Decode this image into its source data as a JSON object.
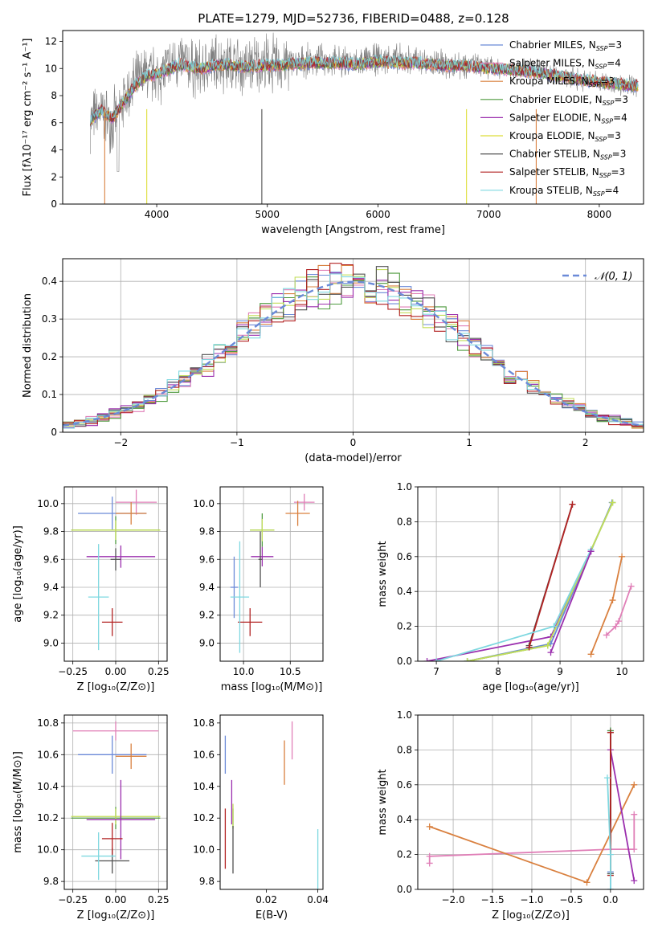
{
  "figure_title": "PLATE=1279, MJD=52736, FIBERID=0488, z=0.128",
  "chart_data": [
    {
      "id": "spectrum",
      "type": "line",
      "title": "PLATE=1279, MJD=52736, FIBERID=0488, z=0.128",
      "xlabel": "wavelength [Angstrom, rest frame]",
      "ylabel": "Flux [fλ10⁻¹⁷ erg cm⁻² s⁻¹ A⁻¹]",
      "xlim": [
        3150,
        8400
      ],
      "ylim": [
        0,
        12.8
      ],
      "xticks": [
        4000,
        5000,
        6000,
        7000,
        8000
      ],
      "yticks": [
        0,
        2,
        4,
        6,
        8,
        10,
        12
      ],
      "grid": false,
      "legend_position": "upper right",
      "data_series": {
        "name": "",
        "color": "#808080",
        "x": [
          3400,
          3500,
          3600,
          3700,
          3800,
          3900,
          4000,
          4100,
          4200,
          4300,
          4400,
          4500,
          4600,
          4700,
          4800,
          4900,
          5000,
          5200,
          5400,
          5600,
          5800,
          6000,
          6200,
          6400,
          6600,
          6800,
          7000,
          7200,
          7400,
          7600,
          7800,
          8000,
          8200,
          8350
        ],
        "y": [
          6.2,
          6.8,
          6.0,
          7.6,
          8.8,
          9.6,
          9.4,
          10.0,
          10.6,
          10.2,
          9.8,
          10.4,
          10.5,
          10.3,
          10.1,
          10.4,
          10.3,
          10.4,
          10.6,
          10.5,
          10.4,
          10.7,
          10.6,
          10.5,
          10.3,
          10.4,
          10.1,
          10.0,
          9.9,
          9.6,
          9.2,
          9.0,
          8.8,
          8.7
        ]
      },
      "series": [
        {
          "name": "Chabrier MILES, N_SSP=3",
          "label": "Chabrier MILES, N",
          "sub": "SSP",
          "tail": "=3",
          "color": "#6b8ad8"
        },
        {
          "name": "Salpeter MILES, N_SSP=4",
          "label": "Salpeter MILES, N",
          "sub": "SSP",
          "tail": "=4",
          "color": "#e07fb7"
        },
        {
          "name": "Kroupa MILES, N_SSP=3",
          "label": "Kroupa MILES, N",
          "sub": "SSP",
          "tail": "=3",
          "color": "#d9803f"
        },
        {
          "name": "Chabrier ELODIE, N_SSP=3",
          "label": "Chabrier ELODIE, N",
          "sub": "SSP",
          "tail": "=3",
          "color": "#4e9a3e"
        },
        {
          "name": "Salpeter ELODIE, N_SSP=4",
          "label": "Salpeter ELODIE, N",
          "sub": "SSP",
          "tail": "=4",
          "color": "#9b2fae"
        },
        {
          "name": "Kroupa ELODIE, N_SSP=3",
          "label": "Kroupa ELODIE, N",
          "sub": "SSP",
          "tail": "=3",
          "color": "#dede3a"
        },
        {
          "name": "Chabrier STELIB, N_SSP=3",
          "label": "Chabrier STELIB, N",
          "sub": "SSP",
          "tail": "=3",
          "color": "#505050"
        },
        {
          "name": "Salpeter STELIB, N_SSP=3",
          "label": "Salpeter STELIB, N",
          "sub": "SSP",
          "tail": "=3",
          "color": "#b22222"
        },
        {
          "name": "Kroupa STELIB, N_SSP=4",
          "label": "Kroupa STELIB, N",
          "sub": "SSP",
          "tail": "=4",
          "color": "#7fd8e0"
        }
      ],
      "model_series": {
        "x": [
          3400,
          3500,
          3600,
          3700,
          3800,
          3900,
          4000,
          4100,
          4200,
          4300,
          4400,
          4500,
          4600,
          4700,
          4800,
          4900,
          5000,
          5200,
          5400,
          5600,
          5800,
          6000,
          6200,
          6400,
          6600,
          6800,
          7000,
          7200,
          7400,
          7600,
          7800,
          8000,
          8200,
          8350
        ],
        "y": [
          6.2,
          6.9,
          6.3,
          7.5,
          8.7,
          9.4,
          9.6,
          9.9,
          10.3,
          10.1,
          10.0,
          10.2,
          10.3,
          10.2,
          10.1,
          10.2,
          10.2,
          10.3,
          10.4,
          10.4,
          10.3,
          10.5,
          10.4,
          10.4,
          10.2,
          10.2,
          10.0,
          9.9,
          9.7,
          9.5,
          9.2,
          9.0,
          8.8,
          8.7
        ]
      },
      "dropouts": [
        {
          "series": "Kroupa MILES, N_SSP=3",
          "x": 3530
        },
        {
          "series": "Kroupa ELODIE, N_SSP=3",
          "x": 3910
        },
        {
          "series": "Chabrier STELIB, N_SSP=3",
          "x": 4950
        },
        {
          "series": "Kroupa ELODIE, N_SSP=3",
          "x": 6800
        },
        {
          "series": "Kroupa MILES, N_SSP=3",
          "x": 7430
        }
      ]
    },
    {
      "id": "residuals",
      "type": "histogram",
      "xlabel": "(data-model)/error",
      "ylabel": "Normed distribution",
      "xlim": [
        -2.5,
        2.5
      ],
      "ylim": [
        0,
        0.46
      ],
      "xticks": [
        -2,
        -1,
        0,
        1,
        2
      ],
      "yticks": [
        0.0,
        0.1,
        0.2,
        0.3,
        0.4
      ],
      "grid": true,
      "legend_position": "upper right",
      "legend_entry": "𝒩(0, 1)",
      "bin_width": 0.1,
      "reference_curve": {
        "name": "N(0,1)",
        "type": "normal",
        "mean": 0,
        "sigma": 1,
        "color": "#6b8ad8",
        "dashed": true
      },
      "series": [
        {
          "name": "Chabrier MILES",
          "color": "#6b8ad8"
        },
        {
          "name": "Salpeter MILES",
          "color": "#e07fb7"
        },
        {
          "name": "Kroupa MILES",
          "color": "#d9803f"
        },
        {
          "name": "Chabrier ELODIE",
          "color": "#4e9a3e"
        },
        {
          "name": "Salpeter ELODIE",
          "color": "#9b2fae"
        },
        {
          "name": "Kroupa ELODIE",
          "color": "#c2dd5a"
        },
        {
          "name": "Chabrier STELIB",
          "color": "#505050"
        },
        {
          "name": "Salpeter STELIB",
          "color": "#b22222"
        },
        {
          "name": "Kroupa STELIB",
          "color": "#7fd8e0"
        }
      ]
    },
    {
      "id": "age_vs_Z",
      "type": "errorbar",
      "xlabel": "Z [log₁₀(Z/Z⊙)]",
      "ylabel": "age  [log₁₀(age/yr)]",
      "xlim": [
        -0.3,
        0.3
      ],
      "ylim": [
        8.87,
        10.12
      ],
      "xticks": [
        -0.25,
        0.0,
        0.25
      ],
      "xticklabels": [
        "−0.25",
        "0.00",
        "0.25"
      ],
      "yticks": [
        9.0,
        9.2,
        9.4,
        9.6,
        9.8,
        10.0
      ],
      "yticklabels": [
        "9.0",
        "9.2",
        "9.4",
        "9.6",
        "9.8",
        "10.0"
      ],
      "grid": true,
      "points": [
        {
          "color": "#6b8ad8",
          "x": -0.02,
          "xerr": 0.2,
          "y": 9.93,
          "yerr": 0.12
        },
        {
          "color": "#e07fb7",
          "x": 0.12,
          "xerr": 0.12,
          "y": 10.01,
          "yerr": 0.09
        },
        {
          "color": "#d9803f",
          "x": 0.09,
          "xerr": 0.09,
          "y": 9.93,
          "yerr": 0.08
        },
        {
          "color": "#4e9a3e",
          "x": 0.0,
          "xerr": 0.26,
          "y": 9.81,
          "yerr": 0.1
        },
        {
          "color": "#c2dd5a",
          "x": 0.0,
          "xerr": 0.26,
          "y": 9.81,
          "yerr": 0.07
        },
        {
          "color": "#9b2fae",
          "x": 0.03,
          "xerr": 0.2,
          "y": 9.62,
          "yerr": 0.08
        },
        {
          "color": "#505050",
          "x": 0.0,
          "xerr": 0.03,
          "y": 9.6,
          "yerr": 0.08
        },
        {
          "color": "#b22222",
          "x": -0.02,
          "xerr": 0.06,
          "y": 9.15,
          "yerr": 0.1
        },
        {
          "color": "#7fd8e0",
          "x": -0.1,
          "xerr": 0.06,
          "y": 9.33,
          "yerr": 0.38
        }
      ]
    },
    {
      "id": "age_vs_mass",
      "type": "errorbar",
      "xlabel": "mass [log₁₀(M/M⊙)]",
      "ylabel": "",
      "xlim": [
        9.75,
        10.85
      ],
      "ylim": [
        8.87,
        10.12
      ],
      "xticks": [
        10.0,
        10.5
      ],
      "xticklabels": [
        "10.0",
        "10.5"
      ],
      "yticks": [
        9.0,
        9.2,
        9.4,
        9.6,
        9.8,
        10.0
      ],
      "yticklabels": [
        "9.0",
        "9.2",
        "9.4",
        "9.6",
        "9.8",
        "10.0"
      ],
      "grid": true,
      "points": [
        {
          "color": "#6b8ad8",
          "x": 9.9,
          "xerr": 0.04,
          "y": 9.4,
          "yerr": 0.22
        },
        {
          "color": "#e07fb7",
          "x": 10.65,
          "xerr": 0.11,
          "y": 10.01,
          "yerr": 0.06
        },
        {
          "color": "#d9803f",
          "x": 10.58,
          "xerr": 0.13,
          "y": 9.93,
          "yerr": 0.09
        },
        {
          "color": "#4e9a3e",
          "x": 10.2,
          "xerr": 0.13,
          "y": 9.81,
          "yerr": 0.12
        },
        {
          "color": "#c2dd5a",
          "x": 10.2,
          "xerr": 0.13,
          "y": 9.81,
          "yerr": 0.08
        },
        {
          "color": "#9b2fae",
          "x": 10.2,
          "xerr": 0.12,
          "y": 9.62,
          "yerr": 0.07
        },
        {
          "color": "#505050",
          "x": 10.18,
          "xerr": 0.02,
          "y": 9.6,
          "yerr": 0.2
        },
        {
          "color": "#b22222",
          "x": 10.07,
          "xerr": 0.13,
          "y": 9.15,
          "yerr": 0.1
        },
        {
          "color": "#7fd8e0",
          "x": 9.96,
          "xerr": 0.1,
          "y": 9.33,
          "yerr": 0.4
        }
      ]
    },
    {
      "id": "weight_vs_age",
      "type": "line",
      "xlabel": "age  [log₁₀(age/yr)]",
      "ylabel": "mass weight",
      "xlim": [
        6.7,
        10.35
      ],
      "ylim": [
        0,
        1.0
      ],
      "xticks": [
        7,
        8,
        9,
        10
      ],
      "xticklabels": [
        "7",
        "8",
        "9",
        "10"
      ],
      "yticks": [
        0.0,
        0.2,
        0.4,
        0.6,
        0.8,
        1.0
      ],
      "yticklabels": [
        "0.0",
        "0.2",
        "0.4",
        "0.6",
        "0.8",
        "1.0"
      ],
      "grid": true,
      "series": [
        {
          "color": "#6b8ad8",
          "x": [
            7.5,
            8.85,
            9.84
          ],
          "y": [
            0.0,
            0.1,
            0.91
          ]
        },
        {
          "color": "#e07fb7",
          "x": [
            9.75,
            9.9,
            9.95,
            10.15
          ],
          "y": [
            0.15,
            0.2,
            0.23,
            0.43
          ]
        },
        {
          "color": "#d9803f",
          "x": [
            9.5,
            9.85,
            10.0
          ],
          "y": [
            0.04,
            0.35,
            0.6
          ]
        },
        {
          "color": "#4e9a3e",
          "x": [
            7.5,
            8.8,
            9.85
          ],
          "y": [
            0.0,
            0.09,
            0.91
          ]
        },
        {
          "color": "#9b2fae",
          "x": [
            6.85,
            8.85,
            9.5
          ],
          "y": [
            0.0,
            0.14,
            0.63
          ]
        },
        {
          "color": "#c2dd5a",
          "x": [
            7.5,
            8.8,
            9.85
          ],
          "y": [
            0.0,
            0.09,
            0.91
          ]
        },
        {
          "color": "#505050",
          "x": [
            8.5,
            9.2
          ],
          "y": [
            0.09,
            0.9
          ]
        },
        {
          "color": "#b22222",
          "x": [
            8.5,
            9.2
          ],
          "y": [
            0.08,
            0.9
          ]
        },
        {
          "color": "#7fd8e0",
          "x": [
            7.0,
            8.9,
            9.5
          ],
          "y": [
            0.0,
            0.2,
            0.64
          ]
        },
        {
          "color": "#9b2fae",
          "x": [
            8.85,
            9.5
          ],
          "y": [
            0.05,
            0.63
          ]
        }
      ]
    },
    {
      "id": "mass_vs_Z",
      "type": "errorbar",
      "xlabel": "Z [log₁₀(Z/Z⊙)]",
      "ylabel": "mass [log₁₀(M/M⊙)]",
      "xlim": [
        -0.3,
        0.3
      ],
      "ylim": [
        9.75,
        10.85
      ],
      "xticks": [
        -0.25,
        0.0,
        0.25
      ],
      "xticklabels": [
        "−0.25",
        "0.00",
        "0.25"
      ],
      "yticks": [
        9.8,
        10.0,
        10.2,
        10.4,
        10.6,
        10.8
      ],
      "yticklabels": [
        "9.8",
        "10.0",
        "10.2",
        "10.4",
        "10.6",
        "10.8"
      ],
      "grid": true,
      "points": [
        {
          "color": "#6b8ad8",
          "x": -0.02,
          "xerr": 0.2,
          "y": 10.6,
          "yerr": 0.12
        },
        {
          "color": "#e07fb7",
          "x": 0.0,
          "xerr": 0.25,
          "y": 10.75,
          "yerr": 0.06
        },
        {
          "color": "#d9803f",
          "x": 0.09,
          "xerr": 0.09,
          "y": 10.59,
          "yerr": 0.08
        },
        {
          "color": "#4e9a3e",
          "x": 0.0,
          "xerr": 0.26,
          "y": 10.2,
          "yerr": 0.07
        },
        {
          "color": "#c2dd5a",
          "x": 0.0,
          "xerr": 0.26,
          "y": 10.21,
          "yerr": 0.05
        },
        {
          "color": "#9b2fae",
          "x": 0.03,
          "xerr": 0.2,
          "y": 10.19,
          "yerr": 0.25
        },
        {
          "color": "#505050",
          "x": -0.02,
          "xerr": 0.1,
          "y": 9.93,
          "yerr": 0.08
        },
        {
          "color": "#b22222",
          "x": -0.02,
          "xerr": 0.06,
          "y": 10.07,
          "yerr": 0.1
        },
        {
          "color": "#7fd8e0",
          "x": -0.1,
          "xerr": 0.1,
          "y": 9.96,
          "yerr": 0.15
        }
      ]
    },
    {
      "id": "mass_vs_ebv",
      "type": "errorbar",
      "xlabel": "E(B-V)",
      "ylabel": "",
      "xlim": [
        0.002,
        0.042
      ],
      "ylim": [
        9.75,
        10.85
      ],
      "xticks": [
        0.02,
        0.04
      ],
      "xticklabels": [
        "0.02",
        "0.04"
      ],
      "yticks": [
        9.8,
        10.0,
        10.2,
        10.4,
        10.6,
        10.8
      ],
      "yticklabels": [
        "9.8",
        "10.0",
        "10.2",
        "10.4",
        "10.6",
        "10.8"
      ],
      "grid": false,
      "points": [
        {
          "color": "#6b8ad8",
          "x": 0.004,
          "xerr": 0,
          "y": 10.6,
          "yerr": 0.12
        },
        {
          "color": "#e07fb7",
          "x": 0.03,
          "xerr": 0,
          "y": 10.69,
          "yerr": 0.12
        },
        {
          "color": "#d9803f",
          "x": 0.027,
          "xerr": 0,
          "y": 10.55,
          "yerr": 0.14
        },
        {
          "color": "#4e9a3e",
          "x": 0.007,
          "xerr": 0,
          "y": 10.2,
          "yerr": 0.06
        },
        {
          "color": "#c2dd5a",
          "x": 0.007,
          "xerr": 0,
          "y": 10.21,
          "yerr": 0.08
        },
        {
          "color": "#9b2fae",
          "x": 0.0065,
          "xerr": 0,
          "y": 10.3,
          "yerr": 0.14
        },
        {
          "color": "#505050",
          "x": 0.007,
          "xerr": 0,
          "y": 10.0,
          "yerr": 0.15
        },
        {
          "color": "#b22222",
          "x": 0.004,
          "xerr": 0,
          "y": 10.07,
          "yerr": 0.19
        },
        {
          "color": "#7fd8e0",
          "x": 0.04,
          "xerr": 0,
          "y": 9.93,
          "yerr": 0.2
        }
      ]
    },
    {
      "id": "weight_vs_Z",
      "type": "line",
      "xlabel": "Z [log₁₀(Z/Z⊙)]",
      "ylabel": "mass weight",
      "xlim": [
        -2.45,
        0.42
      ],
      "ylim": [
        0,
        1.0
      ],
      "xticks": [
        -2.0,
        -1.5,
        -1.0,
        -0.5,
        0.0
      ],
      "xticklabels": [
        "−2.0",
        "−1.5",
        "−1.0",
        "−0.5",
        "0.0"
      ],
      "yticks": [
        0.0,
        0.2,
        0.4,
        0.6,
        0.8,
        1.0
      ],
      "yticklabels": [
        "0.0",
        "0.2",
        "0.4",
        "0.6",
        "0.8",
        "1.0"
      ],
      "grid": true,
      "series": [
        {
          "color": "#e07fb7",
          "x": [
            -2.3,
            -2.3,
            0.0,
            0.3,
            0.3
          ],
          "y": [
            0.15,
            0.19,
            0.23,
            0.23,
            0.43
          ]
        },
        {
          "color": "#d9803f",
          "x": [
            -2.3,
            -0.3,
            0.3
          ],
          "y": [
            0.36,
            0.04,
            0.6
          ]
        },
        {
          "color": "#6b8ad8",
          "x": [
            0.0,
            0.0,
            0.0
          ],
          "y": [
            0.0,
            0.1,
            0.91
          ]
        },
        {
          "color": "#4e9a3e",
          "x": [
            0.0,
            0.0
          ],
          "y": [
            0.09,
            0.91
          ]
        },
        {
          "color": "#9b2fae",
          "x": [
            0.0,
            0.3
          ],
          "y": [
            0.8,
            0.05
          ]
        },
        {
          "color": "#505050",
          "x": [
            0.0,
            0.0
          ],
          "y": [
            0.09,
            0.9
          ]
        },
        {
          "color": "#b22222",
          "x": [
            0.0,
            0.0
          ],
          "y": [
            0.08,
            0.9
          ]
        },
        {
          "color": "#7fd8e0",
          "x": [
            -0.04,
            0.0,
            0.0
          ],
          "y": [
            0.64,
            0.2,
            0.0
          ]
        }
      ]
    }
  ]
}
